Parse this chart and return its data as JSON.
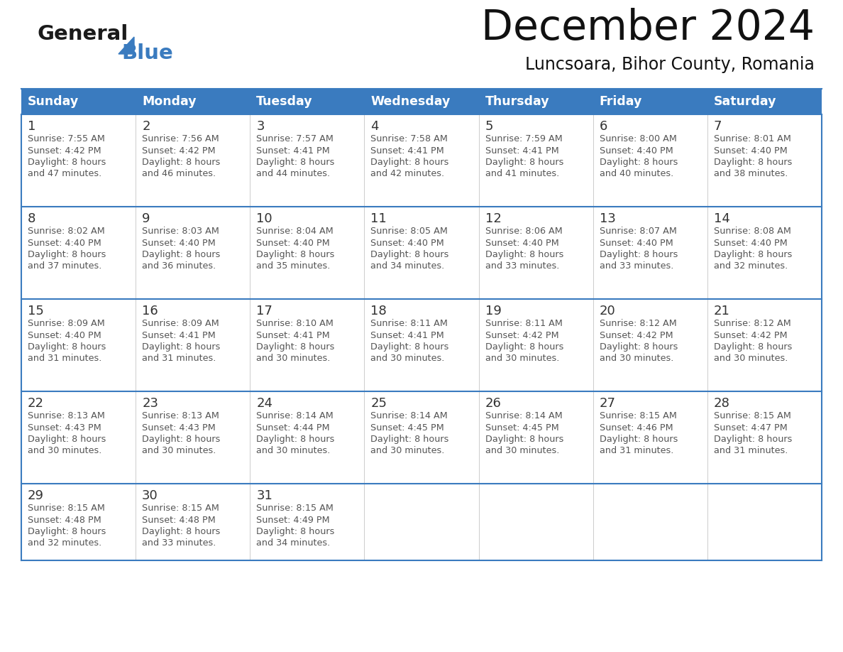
{
  "title": "December 2024",
  "subtitle": "Luncsoara, Bihor County, Romania",
  "header_color": "#3a7bbf",
  "header_text_color": "#ffffff",
  "days_of_week": [
    "Sunday",
    "Monday",
    "Tuesday",
    "Wednesday",
    "Thursday",
    "Friday",
    "Saturday"
  ],
  "bg_color": "#ffffff",
  "cell_text_color": "#555555",
  "border_color": "#3a7bbf",
  "grid_color": "#aaaaaa",
  "calendar": [
    [
      {
        "day": 1,
        "sunrise": "7:55 AM",
        "sunset": "4:42 PM",
        "daylight": "8 hours and 47 minutes."
      },
      {
        "day": 2,
        "sunrise": "7:56 AM",
        "sunset": "4:42 PM",
        "daylight": "8 hours and 46 minutes."
      },
      {
        "day": 3,
        "sunrise": "7:57 AM",
        "sunset": "4:41 PM",
        "daylight": "8 hours and 44 minutes."
      },
      {
        "day": 4,
        "sunrise": "7:58 AM",
        "sunset": "4:41 PM",
        "daylight": "8 hours and 42 minutes."
      },
      {
        "day": 5,
        "sunrise": "7:59 AM",
        "sunset": "4:41 PM",
        "daylight": "8 hours and 41 minutes."
      },
      {
        "day": 6,
        "sunrise": "8:00 AM",
        "sunset": "4:40 PM",
        "daylight": "8 hours and 40 minutes."
      },
      {
        "day": 7,
        "sunrise": "8:01 AM",
        "sunset": "4:40 PM",
        "daylight": "8 hours and 38 minutes."
      }
    ],
    [
      {
        "day": 8,
        "sunrise": "8:02 AM",
        "sunset": "4:40 PM",
        "daylight": "8 hours and 37 minutes."
      },
      {
        "day": 9,
        "sunrise": "8:03 AM",
        "sunset": "4:40 PM",
        "daylight": "8 hours and 36 minutes."
      },
      {
        "day": 10,
        "sunrise": "8:04 AM",
        "sunset": "4:40 PM",
        "daylight": "8 hours and 35 minutes."
      },
      {
        "day": 11,
        "sunrise": "8:05 AM",
        "sunset": "4:40 PM",
        "daylight": "8 hours and 34 minutes."
      },
      {
        "day": 12,
        "sunrise": "8:06 AM",
        "sunset": "4:40 PM",
        "daylight": "8 hours and 33 minutes."
      },
      {
        "day": 13,
        "sunrise": "8:07 AM",
        "sunset": "4:40 PM",
        "daylight": "8 hours and 33 minutes."
      },
      {
        "day": 14,
        "sunrise": "8:08 AM",
        "sunset": "4:40 PM",
        "daylight": "8 hours and 32 minutes."
      }
    ],
    [
      {
        "day": 15,
        "sunrise": "8:09 AM",
        "sunset": "4:40 PM",
        "daylight": "8 hours and 31 minutes."
      },
      {
        "day": 16,
        "sunrise": "8:09 AM",
        "sunset": "4:41 PM",
        "daylight": "8 hours and 31 minutes."
      },
      {
        "day": 17,
        "sunrise": "8:10 AM",
        "sunset": "4:41 PM",
        "daylight": "8 hours and 30 minutes."
      },
      {
        "day": 18,
        "sunrise": "8:11 AM",
        "sunset": "4:41 PM",
        "daylight": "8 hours and 30 minutes."
      },
      {
        "day": 19,
        "sunrise": "8:11 AM",
        "sunset": "4:42 PM",
        "daylight": "8 hours and 30 minutes."
      },
      {
        "day": 20,
        "sunrise": "8:12 AM",
        "sunset": "4:42 PM",
        "daylight": "8 hours and 30 minutes."
      },
      {
        "day": 21,
        "sunrise": "8:12 AM",
        "sunset": "4:42 PM",
        "daylight": "8 hours and 30 minutes."
      }
    ],
    [
      {
        "day": 22,
        "sunrise": "8:13 AM",
        "sunset": "4:43 PM",
        "daylight": "8 hours and 30 minutes."
      },
      {
        "day": 23,
        "sunrise": "8:13 AM",
        "sunset": "4:43 PM",
        "daylight": "8 hours and 30 minutes."
      },
      {
        "day": 24,
        "sunrise": "8:14 AM",
        "sunset": "4:44 PM",
        "daylight": "8 hours and 30 minutes."
      },
      {
        "day": 25,
        "sunrise": "8:14 AM",
        "sunset": "4:45 PM",
        "daylight": "8 hours and 30 minutes."
      },
      {
        "day": 26,
        "sunrise": "8:14 AM",
        "sunset": "4:45 PM",
        "daylight": "8 hours and 30 minutes."
      },
      {
        "day": 27,
        "sunrise": "8:15 AM",
        "sunset": "4:46 PM",
        "daylight": "8 hours and 31 minutes."
      },
      {
        "day": 28,
        "sunrise": "8:15 AM",
        "sunset": "4:47 PM",
        "daylight": "8 hours and 31 minutes."
      }
    ],
    [
      {
        "day": 29,
        "sunrise": "8:15 AM",
        "sunset": "4:48 PM",
        "daylight": "8 hours and 32 minutes."
      },
      {
        "day": 30,
        "sunrise": "8:15 AM",
        "sunset": "4:48 PM",
        "daylight": "8 hours and 33 minutes."
      },
      {
        "day": 31,
        "sunrise": "8:15 AM",
        "sunset": "4:49 PM",
        "daylight": "8 hours and 34 minutes."
      },
      null,
      null,
      null,
      null
    ]
  ]
}
